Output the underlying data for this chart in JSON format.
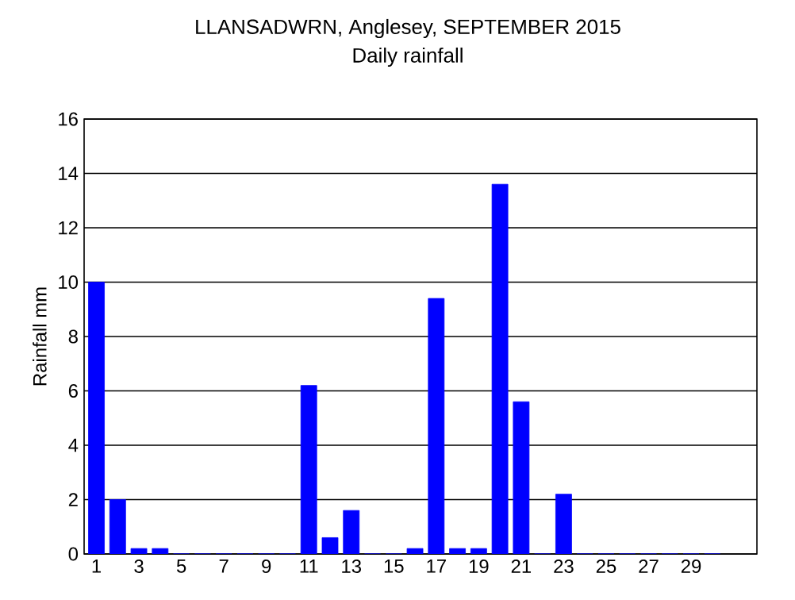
{
  "chart_data": {
    "type": "bar",
    "title": "LLANSADWRN, Anglesey, SEPTEMBER 2015",
    "subtitle": "Daily rainfall",
    "ylabel": "Rainfall mm",
    "categories": [
      "1",
      null,
      "3",
      null,
      "5",
      null,
      "7",
      null,
      "9",
      null,
      "11",
      null,
      "13",
      null,
      "15",
      null,
      "17",
      null,
      "19",
      null,
      "21",
      null,
      "23",
      null,
      "25",
      null,
      "27",
      null,
      "29",
      null
    ],
    "values": [
      10,
      2,
      0.2,
      0.2,
      0,
      0,
      0,
      0,
      0,
      0,
      6.2,
      0.6,
      1.6,
      0,
      0,
      0.2,
      9.4,
      0.2,
      0.2,
      13.6,
      5.6,
      0,
      2.2,
      0,
      0,
      0,
      0,
      0,
      0,
      0
    ],
    "color": "#0000ff",
    "ylim": [
      0,
      16
    ],
    "yticks": [
      0,
      2,
      4,
      6,
      8,
      10,
      12,
      14,
      16
    ],
    "grid": "y"
  }
}
